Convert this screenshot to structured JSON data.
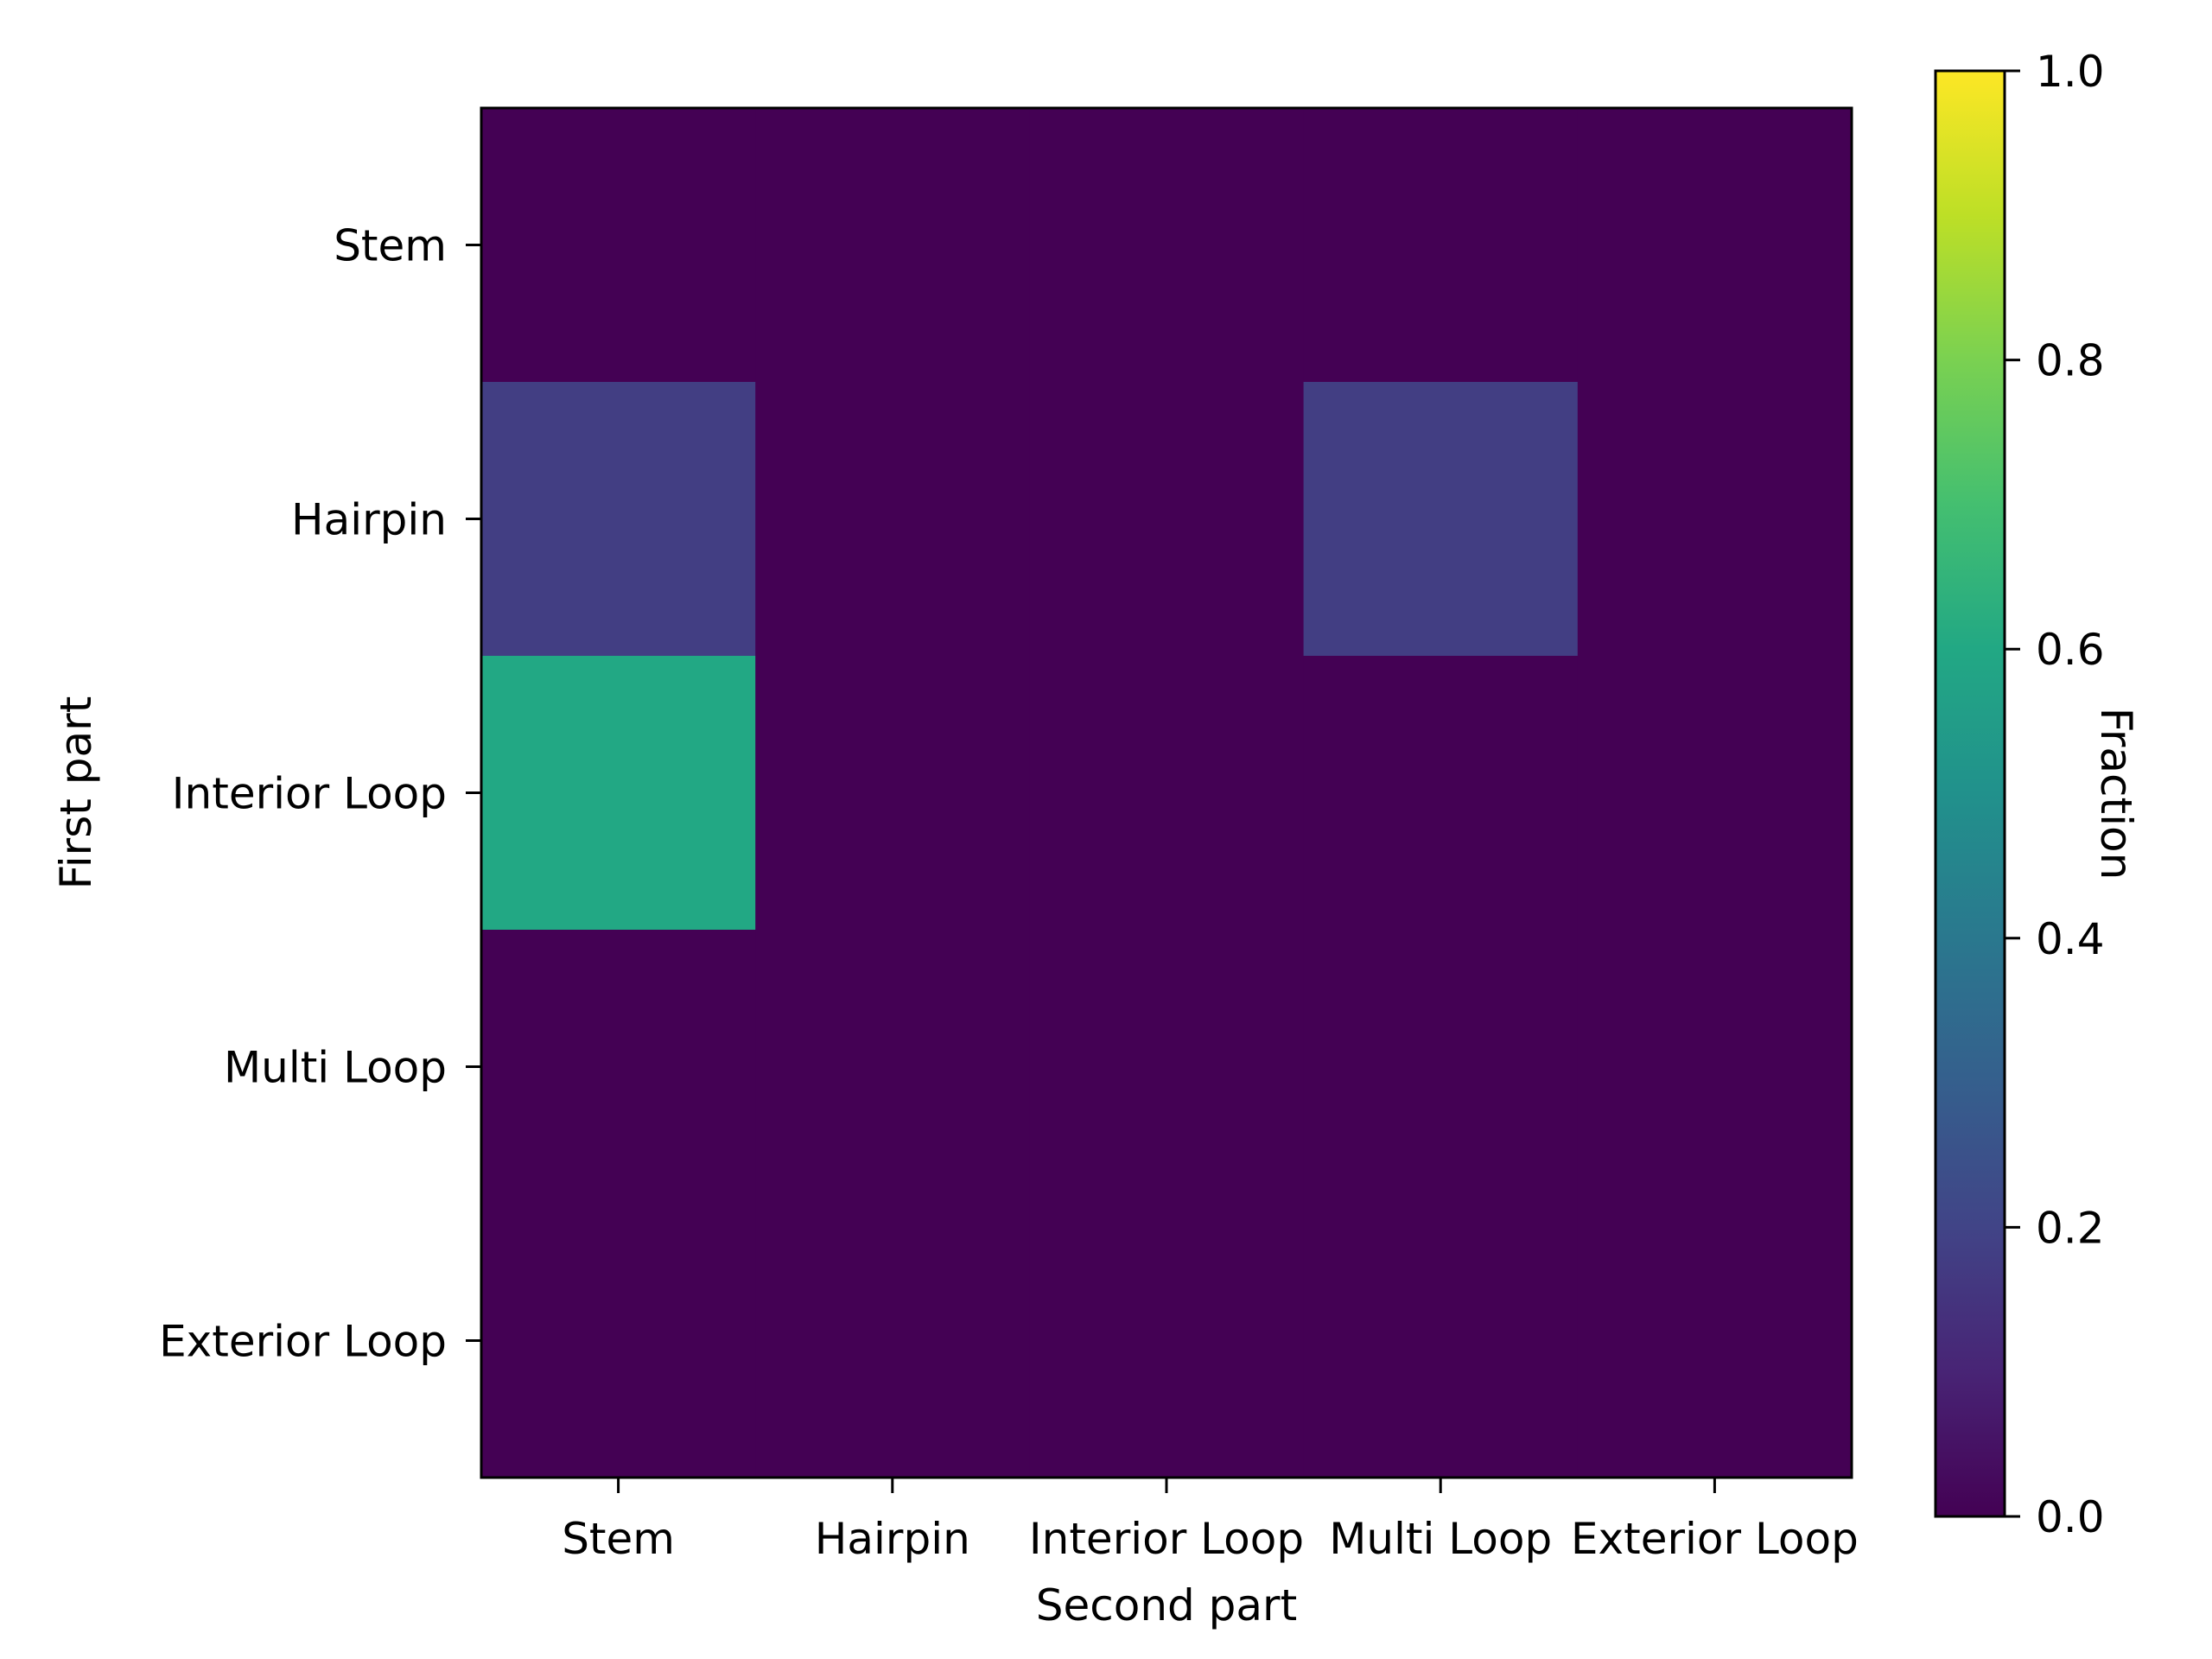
{
  "chart_data": {
    "type": "heatmap",
    "title": "",
    "xlabel": "Second part",
    "ylabel": "First part",
    "x_categories": [
      "Stem",
      "Hairpin",
      "Interior Loop",
      "Multi Loop",
      "Exterior Loop"
    ],
    "y_categories": [
      "Stem",
      "Hairpin",
      "Interior Loop",
      "Multi Loop",
      "Exterior Loop"
    ],
    "values": [
      [
        0.0,
        0.0,
        0.0,
        0.0,
        0.0
      ],
      [
        0.18,
        0.0,
        0.0,
        0.18,
        0.0
      ],
      [
        0.6,
        0.0,
        0.0,
        0.0,
        0.0
      ],
      [
        0.0,
        0.0,
        0.0,
        0.0,
        0.0
      ],
      [
        0.0,
        0.0,
        0.0,
        0.0,
        0.0
      ]
    ],
    "colorbar": {
      "label": "Fraction",
      "range": [
        0.0,
        1.0
      ],
      "ticks": [
        "0.0",
        "0.2",
        "0.4",
        "0.6",
        "0.8",
        "1.0"
      ],
      "colormap": "viridis"
    },
    "grid": false
  }
}
